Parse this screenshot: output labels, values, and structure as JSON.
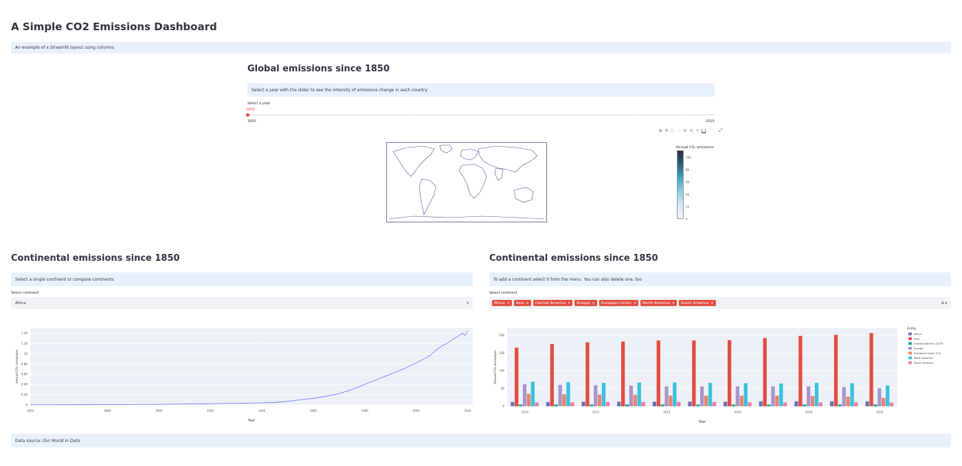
{
  "title": "A Simple CO2 Emissions Dashboard",
  "intro": "An example of a Streamlit layout using columns",
  "global": {
    "heading": "Global emissions since 1850",
    "info": "Select a year with the slider to see the intensity of emissions change in each country",
    "slider_label": "Select a year",
    "slider_value": "1850",
    "slider_min": "1850",
    "slider_max": "2020",
    "colorbar_title": "Annual CO₂ emissions",
    "colorbar_ticks": [
      "0",
      "20",
      "40",
      "60",
      "80",
      "100"
    ]
  },
  "left": {
    "heading": "Continental emissions since 1850",
    "info": "Select a single continent or compare continents",
    "select_label": "Select continent",
    "select_value": "Africa",
    "chart_data": {
      "type": "line",
      "xlabel": "Year",
      "ylabel": "Annual CO₂ emissions",
      "x_ticks": [
        "1850",
        "1880",
        "1900",
        "1920",
        "1940",
        "1960",
        "1980",
        "2000",
        "2020"
      ],
      "y_ticks": [
        "0",
        "0.2B",
        "0.4B",
        "0.6B",
        "0.8B",
        "1B",
        "1.2B",
        "1.4B"
      ],
      "ylim": [
        0,
        1.5
      ],
      "x": [
        1850,
        1870,
        1890,
        1900,
        1910,
        1920,
        1930,
        1940,
        1945,
        1950,
        1955,
        1960,
        1965,
        1970,
        1975,
        1980,
        1985,
        1990,
        1995,
        2000,
        2005,
        2008,
        2010,
        2012,
        2014,
        2016,
        2018,
        2019,
        2020
      ],
      "values": [
        0.002,
        0.004,
        0.008,
        0.012,
        0.018,
        0.025,
        0.032,
        0.04,
        0.05,
        0.07,
        0.1,
        0.13,
        0.17,
        0.22,
        0.3,
        0.4,
        0.5,
        0.6,
        0.7,
        0.82,
        0.95,
        1.08,
        1.15,
        1.2,
        1.27,
        1.33,
        1.4,
        1.36,
        1.44
      ]
    }
  },
  "right": {
    "heading": "Continental emissions since 1850",
    "info": "To add a continent select it from the menu. You can also delete one, too",
    "select_label": "Select continent",
    "tags": [
      "Africa",
      "Asia",
      "Central America",
      "Europe",
      "European Union",
      "North America",
      "South America"
    ],
    "chart_data": {
      "type": "bar",
      "xlabel": "Year",
      "ylabel": "Annual CO₂ emissions",
      "x_ticks": [
        "2010",
        "2012",
        "2014",
        "2016",
        "2018",
        "2020"
      ],
      "y_ticks": [
        "0",
        "5B",
        "10B",
        "15B",
        "20B"
      ],
      "ylim": [
        0,
        22
      ],
      "categories": [
        "2010",
        "2011",
        "2012",
        "2013",
        "2014",
        "2015",
        "2016",
        "2017",
        "2018",
        "2019",
        "2020"
      ],
      "legend_title": "Entity",
      "series": [
        {
          "name": "Africa",
          "color": "#6f73b3",
          "values": [
            1.2,
            1.2,
            1.3,
            1.3,
            1.3,
            1.3,
            1.3,
            1.4,
            1.4,
            1.4,
            1.4
          ]
        },
        {
          "name": "Asia",
          "color": "#e24d42",
          "values": [
            16.5,
            17.5,
            18.0,
            18.2,
            18.5,
            18.5,
            18.6,
            19.2,
            19.8,
            20.1,
            20.6
          ]
        },
        {
          "name": "Central America (GCP)",
          "color": "#1ba58f",
          "values": [
            0.5,
            0.5,
            0.5,
            0.5,
            0.5,
            0.5,
            0.5,
            0.5,
            0.5,
            0.5,
            0.5
          ]
        },
        {
          "name": "Europe",
          "color": "#a796c9",
          "values": [
            6.2,
            6.0,
            5.9,
            5.8,
            5.6,
            5.6,
            5.6,
            5.6,
            5.6,
            5.4,
            5.1
          ]
        },
        {
          "name": "European Union (27)",
          "color": "#e8846e",
          "values": [
            3.5,
            3.4,
            3.3,
            3.2,
            3.0,
            3.0,
            3.0,
            3.0,
            2.9,
            2.7,
            2.4
          ]
        },
        {
          "name": "North America",
          "color": "#36c3de",
          "values": [
            6.9,
            6.8,
            6.6,
            6.7,
            6.7,
            6.6,
            6.5,
            6.4,
            6.6,
            6.5,
            5.8
          ]
        },
        {
          "name": "South America",
          "color": "#f07aa0",
          "values": [
            1.1,
            1.1,
            1.2,
            1.2,
            1.2,
            1.2,
            1.1,
            1.1,
            1.1,
            1.1,
            1.0
          ]
        }
      ]
    }
  },
  "footer": {
    "prefix": "Data source: ",
    "source": "Our World in Data"
  }
}
